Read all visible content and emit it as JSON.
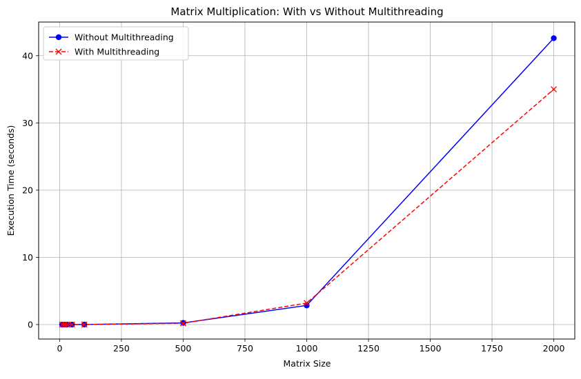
{
  "chart_data": {
    "type": "line",
    "title": "Matrix Multiplication: With vs Without Multithreading",
    "xlabel": "Matrix Size",
    "ylabel": "Execution Time (seconds)",
    "xlim": [
      -85,
      2085
    ],
    "ylim": [
      -2.15,
      45.0
    ],
    "xticks": [
      0,
      250,
      500,
      750,
      1000,
      1250,
      1500,
      1750,
      2000
    ],
    "yticks": [
      0,
      10,
      20,
      30,
      40
    ],
    "grid": true,
    "legend_position": "top-left",
    "series": [
      {
        "name": "Without Multithreading",
        "color": "#0000ff",
        "line_style": "solid",
        "marker": "circle",
        "x": [
          10,
          20,
          30,
          50,
          100,
          500,
          1000,
          2000
        ],
        "y": [
          0.0,
          0.0,
          0.0,
          0.0,
          0.01,
          0.25,
          2.85,
          42.6
        ]
      },
      {
        "name": "With Multithreading",
        "color": "#ff0000",
        "line_style": "dashed",
        "marker": "x",
        "x": [
          10,
          20,
          30,
          50,
          100,
          500,
          1000,
          2000
        ],
        "y": [
          0.0,
          0.0,
          0.0,
          0.0,
          0.01,
          0.2,
          3.2,
          35.0
        ]
      }
    ]
  }
}
